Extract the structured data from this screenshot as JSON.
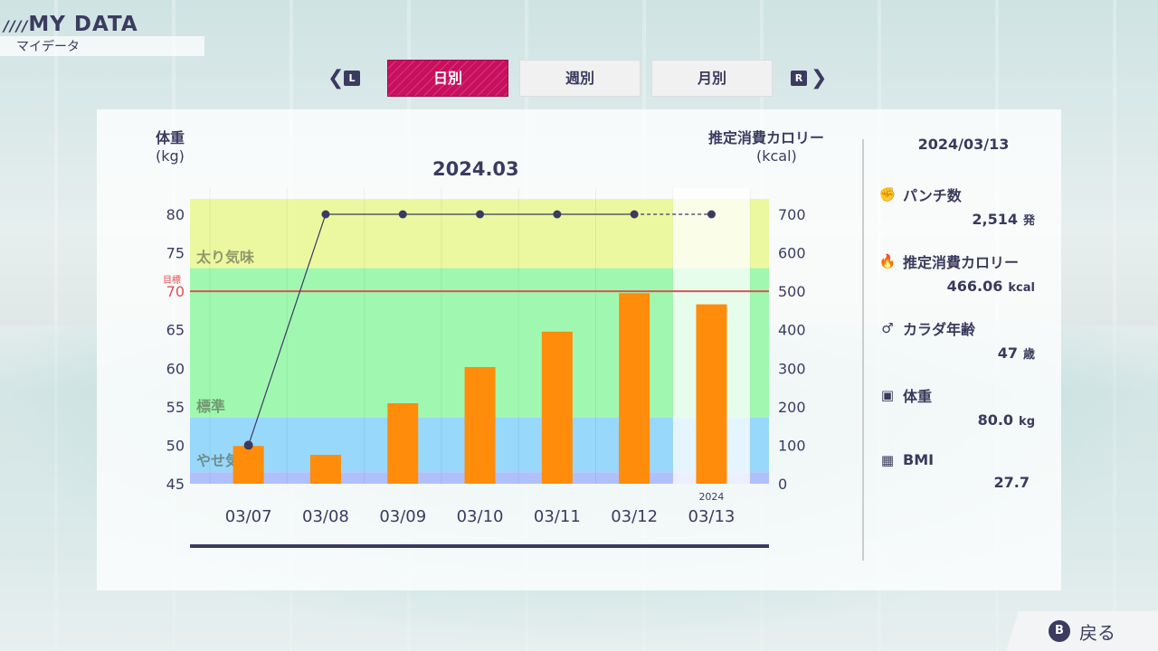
{
  "header": {
    "title": "MY DATA",
    "subtitle": "マイデータ",
    "slash_icon": "stripes-icon"
  },
  "tabs": {
    "left_key": "L",
    "right_key": "R",
    "items": [
      {
        "label": "日別",
        "active": true
      },
      {
        "label": "週別",
        "active": false
      },
      {
        "label": "月別",
        "active": false
      }
    ]
  },
  "chart_labels": {
    "left_axis": "体重",
    "left_unit": "(kg)",
    "right_axis": "推定消費カロリー",
    "right_unit": "(kcal)",
    "period": "2024.03"
  },
  "chart_data": {
    "type": "bar+line",
    "title": "2024.03",
    "categories": [
      "03/07",
      "03/08",
      "03/09",
      "03/10",
      "03/11",
      "03/12",
      "03/13"
    ],
    "highlight_category": "03/13",
    "highlight_year": "2024",
    "series": [
      {
        "name": "推定消費カロリー",
        "type": "bar",
        "axis": "right",
        "color": "#ff8c0a",
        "values": [
          98,
          75,
          209,
          303,
          395,
          495,
          466.06
        ]
      },
      {
        "name": "体重",
        "type": "line",
        "axis": "left",
        "color": "#3b3b60",
        "values": [
          50.0,
          80.0,
          80.0,
          80.0,
          80.0,
          80.0,
          80.0
        ],
        "dashed_last_segment": true
      }
    ],
    "left_axis": {
      "ylim": [
        45,
        82
      ],
      "ticks": [
        45,
        50,
        55,
        60,
        65,
        70,
        75,
        80
      ]
    },
    "right_axis": {
      "ylim": [
        0,
        742
      ],
      "ticks": [
        0,
        100,
        200,
        300,
        400,
        500,
        600,
        700
      ]
    },
    "target": {
      "label": "目標",
      "value": 70,
      "color": "#e05050"
    },
    "zones": [
      {
        "label": "太り気味",
        "from": 73,
        "to": 82,
        "color": "#ecf8a0"
      },
      {
        "label": "標準",
        "from": 53.6,
        "to": 73,
        "color": "#a0f8b0"
      },
      {
        "label": "やせ気味",
        "from": 46.5,
        "to": 53.6,
        "color": "#98d8fa"
      },
      {
        "label": "",
        "from": 45,
        "to": 46.5,
        "color": "#b0c0fa"
      }
    ]
  },
  "summary": {
    "date": "2024/03/13",
    "items": [
      {
        "icon": "boxing-glove-icon",
        "glyph": "✊",
        "label": "パンチ数",
        "value": "2,514",
        "unit": "発"
      },
      {
        "icon": "flame-icon",
        "glyph": "🔥",
        "label": "推定消費カロリー",
        "value": "466.06",
        "unit": "kcal"
      },
      {
        "icon": "body-icon",
        "glyph": "♂",
        "label": "カラダ年齢",
        "value": "47",
        "unit": "歳"
      },
      {
        "icon": "scale-icon",
        "glyph": "▣",
        "label": "体重",
        "value": "80.0",
        "unit": "kg"
      },
      {
        "icon": "calculator-icon",
        "glyph": "▦",
        "label": "BMI",
        "value": "27.7",
        "unit": ""
      }
    ]
  },
  "footer": {
    "button_key": "B",
    "back_label": "戻る"
  }
}
